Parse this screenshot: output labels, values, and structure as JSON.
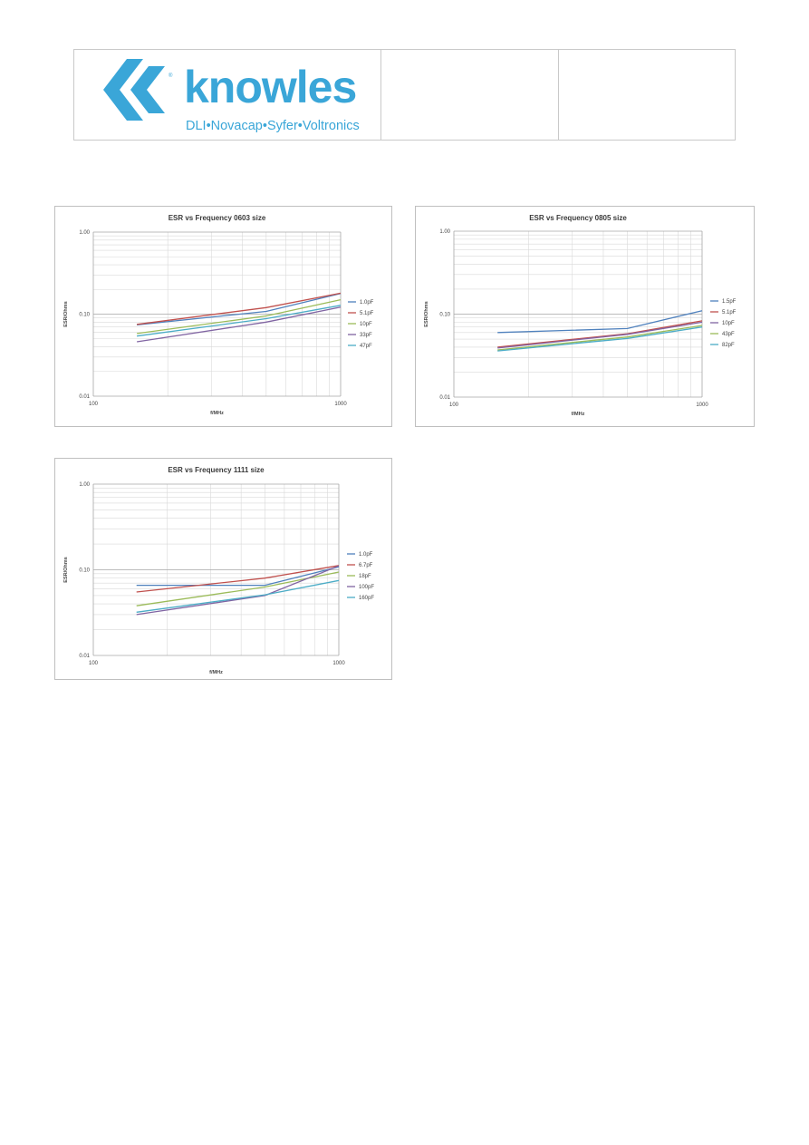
{
  "header": {
    "logo_word": "knowles",
    "logo_tagline": "DLI•Novacap•Syfer•Voltronics",
    "logo_registered": "®",
    "brand_color": "#3aa6d8"
  },
  "chart_data": [
    {
      "type": "line",
      "title": "ESR vs Frequency 0603 size",
      "xlabel": "f/MHz",
      "ylabel": "ESR/Ohms",
      "x_scale": "log",
      "y_scale": "log",
      "xlim": [
        100,
        1000
      ],
      "ylim": [
        0.01,
        1.0
      ],
      "x_ticks": [
        "100",
        "1000"
      ],
      "y_ticks": [
        "0.01",
        "0.10",
        "1.00"
      ],
      "grid": true,
      "legend": "right",
      "x": [
        150,
        500,
        1000
      ],
      "series": [
        {
          "name": "1.0pF",
          "color": "#4f81bd",
          "values": [
            0.074,
            0.108,
            0.178
          ]
        },
        {
          "name": "5.1pF",
          "color": "#c0504d",
          "values": [
            0.075,
            0.12,
            0.18
          ]
        },
        {
          "name": "10pF",
          "color": "#9bbb59",
          "values": [
            0.058,
            0.095,
            0.15
          ]
        },
        {
          "name": "33pF",
          "color": "#8064a2",
          "values": [
            0.046,
            0.08,
            0.122
          ]
        },
        {
          "name": "47pF",
          "color": "#4bacc6",
          "values": [
            0.054,
            0.088,
            0.128
          ]
        }
      ]
    },
    {
      "type": "line",
      "title": "ESR vs Frequency 0805 size",
      "xlabel": "f/MHz",
      "ylabel": "ESR/Ohms",
      "x_scale": "log",
      "y_scale": "log",
      "xlim": [
        100,
        1000
      ],
      "ylim": [
        0.01,
        1.0
      ],
      "x_ticks": [
        "100",
        "1000"
      ],
      "y_ticks": [
        "0.01",
        "0.10",
        "1.00"
      ],
      "grid": true,
      "legend": "right",
      "x": [
        150,
        500,
        1000
      ],
      "series": [
        {
          "name": "1.5pF",
          "color": "#4f81bd",
          "values": [
            0.06,
            0.067,
            0.11
          ]
        },
        {
          "name": "5.1pF",
          "color": "#c0504d",
          "values": [
            0.04,
            0.058,
            0.083
          ]
        },
        {
          "name": "10pF",
          "color": "#8064a2",
          "values": [
            0.039,
            0.057,
            0.08
          ]
        },
        {
          "name": "43pF",
          "color": "#9bbb59",
          "values": [
            0.037,
            0.053,
            0.073
          ]
        },
        {
          "name": "82pF",
          "color": "#4bacc6",
          "values": [
            0.036,
            0.051,
            0.07
          ]
        }
      ]
    },
    {
      "type": "line",
      "title": "ESR vs Frequency 1111 size",
      "xlabel": "f/MHz",
      "ylabel": "ESR/Ohms",
      "x_scale": "log",
      "y_scale": "log",
      "xlim": [
        100,
        1000
      ],
      "ylim": [
        0.01,
        1.0
      ],
      "x_ticks": [
        "100",
        "1000"
      ],
      "y_ticks": [
        "0.01",
        "0.10",
        "1.00"
      ],
      "grid": true,
      "legend": "right",
      "x": [
        150,
        500,
        1000
      ],
      "series": [
        {
          "name": "1.0pF",
          "color": "#4f81bd",
          "values": [
            0.066,
            0.066,
            0.108
          ]
        },
        {
          "name": "6.7pF",
          "color": "#c0504d",
          "values": [
            0.055,
            0.08,
            0.112
          ]
        },
        {
          "name": "18pF",
          "color": "#9bbb59",
          "values": [
            0.038,
            0.063,
            0.094
          ]
        },
        {
          "name": "100pF",
          "color": "#8064a2",
          "values": [
            0.03,
            0.05,
            0.111
          ]
        },
        {
          "name": "160pF",
          "color": "#4bacc6",
          "values": [
            0.032,
            0.051,
            0.075
          ]
        }
      ]
    }
  ]
}
